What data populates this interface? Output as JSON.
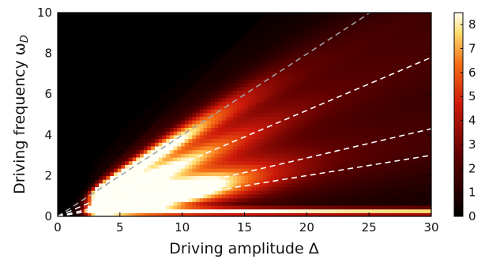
{
  "chart_data": {
    "type": "heatmap",
    "title": "",
    "xlabel": "Driving amplitude Δ",
    "ylabel": "Driving frequency ω",
    "ylabel_subscript": "D",
    "xlim": [
      0,
      30
    ],
    "ylim": [
      0,
      10
    ],
    "xticks": [
      "0",
      "5",
      "10",
      "15",
      "20",
      "25",
      "30"
    ],
    "yticks": [
      "0",
      "2",
      "4",
      "6",
      "8",
      "10"
    ],
    "colorbar": {
      "range": [
        0,
        8.5
      ],
      "ticks": [
        "0",
        "1",
        "2",
        "3",
        "4",
        "5",
        "6",
        "7",
        "8"
      ],
      "colormap": "black-red-yellow-white"
    },
    "grid": false,
    "series": [
      {
        "style": "dashed",
        "color": "#a0a0a0",
        "x": [
          0,
          25.1
        ],
        "y": [
          0,
          10
        ]
      },
      {
        "style": "dashed",
        "color": "#ffffff",
        "x": [
          0,
          30
        ],
        "y": [
          0,
          7.8
        ]
      },
      {
        "style": "dashed",
        "color": "#ffffff",
        "x": [
          0,
          30
        ],
        "y": [
          0,
          4.3
        ]
      },
      {
        "style": "dashed",
        "color": "#ffffff",
        "x": [
          0,
          30
        ],
        "y": [
          0,
          3.0
        ]
      }
    ],
    "features": [
      {
        "shape": "bright horizontal band near ω ≈ 0.2",
        "x_range": [
          3,
          30
        ],
        "peak_value": 8.3
      },
      {
        "shape": "fan of bright branches along the dashed lines",
        "x_range": [
          2.5,
          30
        ],
        "peak_value": 8.0
      }
    ]
  }
}
